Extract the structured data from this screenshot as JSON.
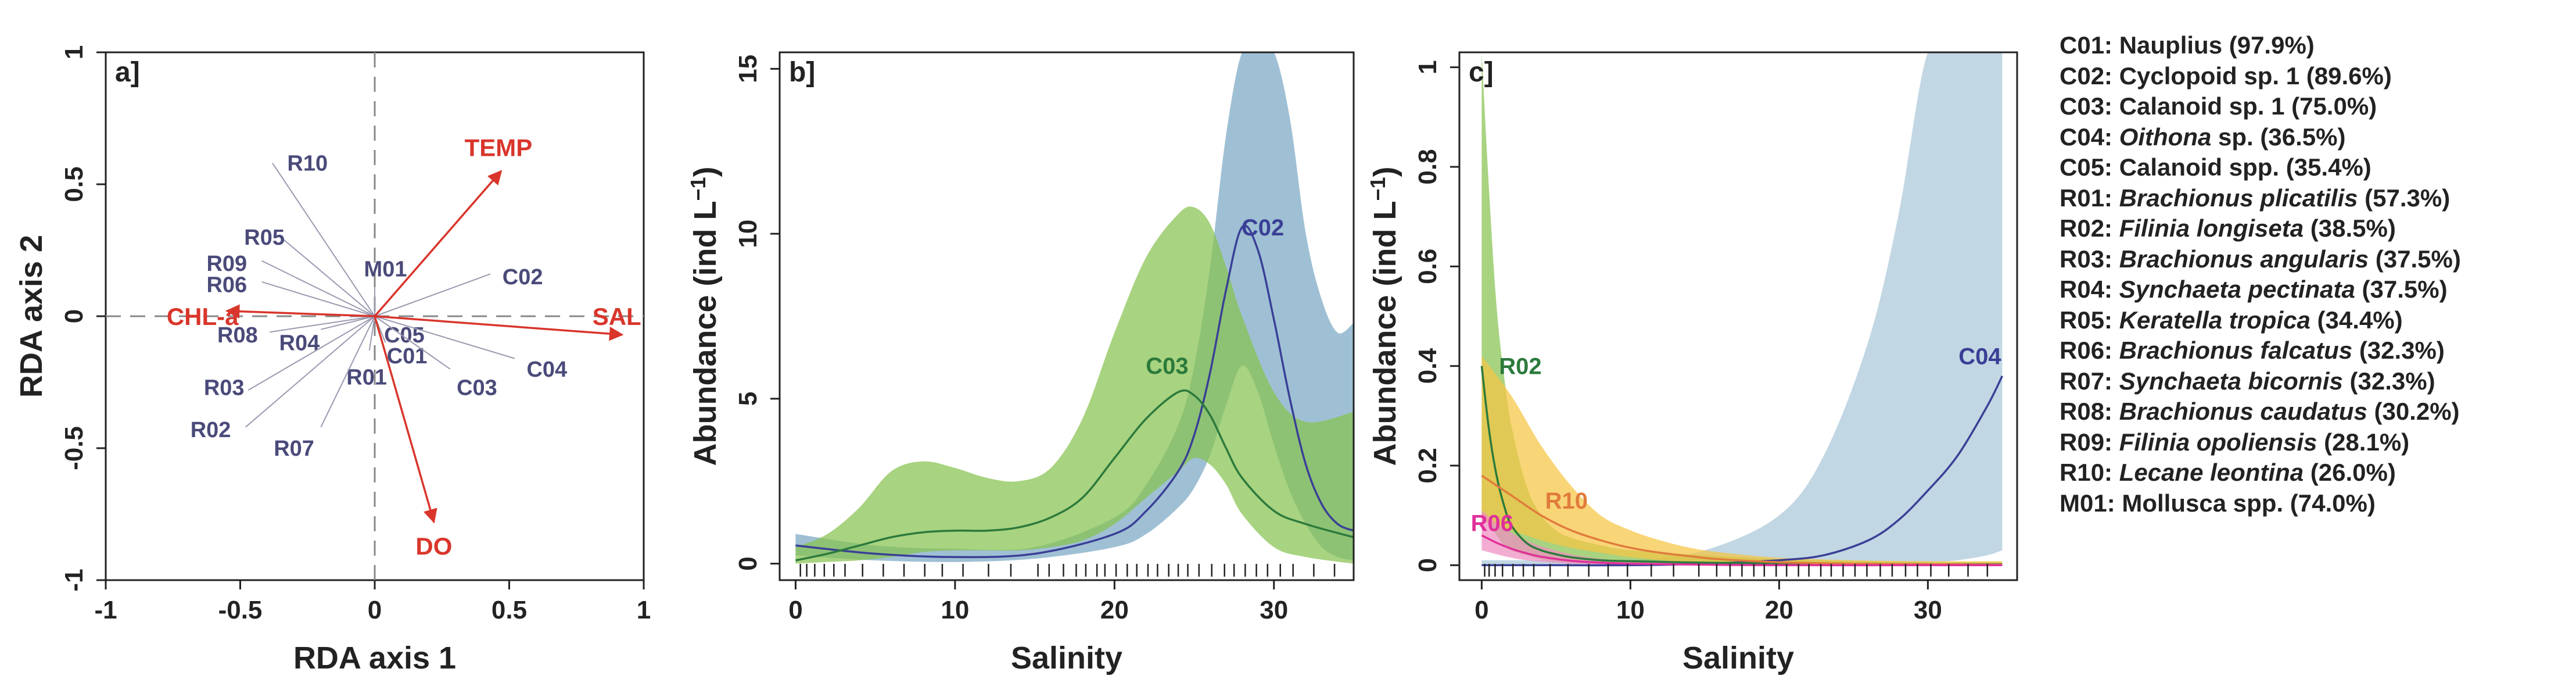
{
  "chart_data": [
    {
      "panel": "a]",
      "type": "scatter",
      "subtype": "rda-biplot",
      "xlabel": "RDA axis 1",
      "ylabel": "RDA axis 2",
      "xlim": [
        -1,
        1
      ],
      "ylim": [
        -1,
        1
      ],
      "xticks": [
        "-1",
        "-0.5",
        "0",
        "0.5",
        "1"
      ],
      "yticks": [
        "1",
        "0.5",
        "0",
        "-0.5",
        "-1"
      ],
      "env_color": "#d9352b",
      "species_color": "#4a4a7a",
      "vector_color": "#9a9ab0",
      "env_vectors": [
        {
          "name": "TEMP",
          "x": 0.47,
          "y": 0.55,
          "lx": 0.46,
          "ly": 0.64
        },
        {
          "name": "SAL",
          "x": 0.92,
          "y": -0.07,
          "lx": 0.9,
          "ly": 0.0
        },
        {
          "name": "CHL-a",
          "x": -0.55,
          "y": 0.02,
          "lx": -0.64,
          "ly": 0.0
        },
        {
          "name": "DO",
          "x": 0.22,
          "y": -0.78,
          "lx": 0.22,
          "ly": -0.87
        }
      ],
      "species": [
        {
          "name": "R10",
          "x": -0.38,
          "y": 0.58,
          "lx": -0.25,
          "ly": 0.58
        },
        {
          "name": "R05",
          "x": -0.35,
          "y": 0.3,
          "lx": -0.41,
          "ly": 0.3
        },
        {
          "name": "R09",
          "x": -0.42,
          "y": 0.21,
          "lx": -0.55,
          "ly": 0.2
        },
        {
          "name": "R06",
          "x": -0.42,
          "y": 0.13,
          "lx": -0.55,
          "ly": 0.12
        },
        {
          "name": "M01",
          "x": 0.0,
          "y": 0.11,
          "lx": 0.04,
          "ly": 0.18
        },
        {
          "name": "C02",
          "x": 0.43,
          "y": 0.16,
          "lx": 0.55,
          "ly": 0.15
        },
        {
          "name": "R08",
          "x": -0.39,
          "y": -0.06,
          "lx": -0.51,
          "ly": -0.07
        },
        {
          "name": "R04",
          "x": -0.2,
          "y": -0.05,
          "lx": -0.28,
          "ly": -0.1
        },
        {
          "name": "C05",
          "x": 0.01,
          "y": -0.04,
          "lx": 0.11,
          "ly": -0.07
        },
        {
          "name": "C01",
          "x": 0.04,
          "y": -0.1,
          "lx": 0.12,
          "ly": -0.15
        },
        {
          "name": "C03",
          "x": 0.28,
          "y": -0.2,
          "lx": 0.38,
          "ly": -0.27
        },
        {
          "name": "C04",
          "x": 0.52,
          "y": -0.16,
          "lx": 0.64,
          "ly": -0.2
        },
        {
          "name": "R01",
          "x": -0.02,
          "y": -0.13,
          "lx": -0.03,
          "ly": -0.23
        },
        {
          "name": "R03",
          "x": -0.47,
          "y": -0.28,
          "lx": -0.56,
          "ly": -0.27
        },
        {
          "name": "R02",
          "x": -0.48,
          "y": -0.42,
          "lx": -0.61,
          "ly": -0.43
        },
        {
          "name": "R07",
          "x": -0.2,
          "y": -0.42,
          "lx": -0.3,
          "ly": -0.5
        }
      ]
    },
    {
      "panel": "b]",
      "type": "line",
      "subtype": "gam-with-confidence-band",
      "xlabel": "Salinity",
      "ylabel": "Abundance (ind L",
      "ylabel_superscript": "−1",
      "ylabel_suffix": ")",
      "xlim": [
        -1,
        35
      ],
      "ylim": [
        -0.5,
        15.5
      ],
      "xticks": [
        "0",
        "10",
        "20",
        "30"
      ],
      "yticks": [
        "0",
        "5",
        "10",
        "15"
      ],
      "series": [
        {
          "name": "C02",
          "color": "#3a3f96",
          "band_color": "#7aa8c4",
          "x": [
            0,
            5,
            10,
            15,
            20,
            22,
            24,
            25,
            26,
            27,
            28,
            29,
            30,
            31,
            32,
            33,
            34,
            35
          ],
          "values": [
            0.55,
            0.3,
            0.2,
            0.3,
            0.9,
            1.6,
            2.8,
            3.9,
            5.8,
            8.3,
            10.2,
            9.5,
            7.4,
            5.0,
            3.0,
            1.8,
            1.2,
            1.0
          ],
          "lower": [
            0.25,
            0.1,
            0.05,
            0.15,
            0.5,
            0.9,
            1.7,
            2.3,
            3.3,
            4.8,
            6.0,
            5.2,
            3.6,
            2.2,
            1.2,
            0.5,
            0.2,
            0.1
          ],
          "upper": [
            0.9,
            0.55,
            0.45,
            0.5,
            1.4,
            2.4,
            4.2,
            6.0,
            9.0,
            13.0,
            15.5,
            15.5,
            15.5,
            13.5,
            10.0,
            8.0,
            7.0,
            7.3
          ],
          "label_x": 29.3,
          "label_y": 10.2
        },
        {
          "name": "C03",
          "color": "#2c7a3c",
          "band_color": "#86c24f",
          "x": [
            0,
            2,
            4,
            6,
            8,
            10,
            12,
            14,
            16,
            18,
            20,
            22,
            24,
            25,
            26,
            27,
            28,
            30,
            32,
            35
          ],
          "values": [
            0.1,
            0.3,
            0.55,
            0.8,
            0.95,
            1.0,
            1.0,
            1.1,
            1.4,
            2.0,
            3.2,
            4.4,
            5.2,
            5.1,
            4.5,
            3.5,
            2.6,
            1.6,
            1.2,
            0.8
          ],
          "lower": [
            0.0,
            0.05,
            0.1,
            0.2,
            0.35,
            0.4,
            0.4,
            0.4,
            0.5,
            0.7,
            1.2,
            2.0,
            2.8,
            3.2,
            3.0,
            2.4,
            1.5,
            0.5,
            0.2,
            0.0
          ],
          "upper": [
            0.5,
            0.9,
            1.7,
            2.8,
            3.1,
            2.9,
            2.6,
            2.5,
            2.9,
            4.4,
            7.0,
            9.3,
            10.6,
            10.8,
            10.3,
            9.0,
            7.5,
            5.2,
            4.3,
            4.6
          ],
          "label_x": 23.3,
          "label_y": 6.0
        }
      ],
      "rug": [
        0.3,
        0.7,
        1.2,
        1.8,
        2.4,
        3.1,
        4.2,
        5.5,
        6.8,
        8.1,
        9.2,
        10.5,
        12.1,
        13.5,
        15.2,
        15.9,
        16.8,
        17.6,
        18.2,
        18.9,
        19.4,
        20.1,
        20.8,
        21.4,
        22.1,
        22.7,
        23.4,
        24.0,
        24.6,
        25.3,
        26.1,
        26.9,
        27.5,
        28.2,
        28.9,
        29.6,
        30.4,
        31.2,
        32.5,
        33.8
      ]
    },
    {
      "panel": "c]",
      "type": "line",
      "subtype": "gam-with-confidence-band",
      "xlabel": "Salinity",
      "ylabel": "Abundance (ind L",
      "ylabel_superscript": "−1",
      "ylabel_suffix": ")",
      "xlim": [
        -1.5,
        36
      ],
      "ylim": [
        -0.03,
        1.03
      ],
      "xticks": [
        "0",
        "10",
        "20",
        "30"
      ],
      "yticks": [
        "0",
        "0.2",
        "0.4",
        "0.6",
        "0.8",
        "1"
      ],
      "series": [
        {
          "name": "C04",
          "color": "#3a3f96",
          "band_color": "#a9c8d8",
          "x": [
            0,
            5,
            10,
            15,
            20,
            23,
            26,
            28,
            30,
            32,
            34,
            35
          ],
          "values": [
            0.0,
            0.0,
            0.0,
            0.003,
            0.01,
            0.02,
            0.05,
            0.09,
            0.15,
            0.22,
            0.32,
            0.38
          ],
          "lower": [
            0.0,
            0.0,
            0.0,
            0.0,
            0.0,
            0.0,
            0.0,
            0.0,
            0.005,
            0.01,
            0.02,
            0.03
          ],
          "upper": [
            0.01,
            0.01,
            0.01,
            0.03,
            0.1,
            0.22,
            0.45,
            0.7,
            1.03,
            1.03,
            1.03,
            1.03
          ],
          "label_x": 33.5,
          "label_y": 0.42
        },
        {
          "name": "R02",
          "color": "#2c7a3c",
          "band_color": "#86c24f",
          "x": [
            0,
            0.5,
            1,
            1.5,
            2,
            3,
            4,
            5,
            6,
            8,
            10,
            15,
            20,
            25,
            30,
            35
          ],
          "values": [
            0.4,
            0.27,
            0.18,
            0.12,
            0.08,
            0.045,
            0.03,
            0.022,
            0.016,
            0.01,
            0.008,
            0.005,
            0.004,
            0.003,
            0.002,
            0.002
          ],
          "lower": [
            0.1,
            0.08,
            0.06,
            0.04,
            0.03,
            0.02,
            0.012,
            0.008,
            0.006,
            0.004,
            0.003,
            0.002,
            0.001,
            0.0,
            0.0,
            0.0
          ],
          "upper": [
            1.03,
            0.75,
            0.52,
            0.38,
            0.28,
            0.16,
            0.1,
            0.07,
            0.055,
            0.04,
            0.03,
            0.02,
            0.012,
            0.008,
            0.006,
            0.006
          ],
          "label_x": 2.6,
          "label_y": 0.4
        },
        {
          "name": "R10",
          "color": "#e07b3c",
          "band_color": "#f5c542",
          "x": [
            0,
            2,
            4,
            6,
            8,
            10,
            12,
            14,
            16,
            20,
            25,
            30,
            35
          ],
          "values": [
            0.18,
            0.14,
            0.1,
            0.07,
            0.05,
            0.035,
            0.025,
            0.018,
            0.012,
            0.006,
            0.003,
            0.002,
            0.001
          ],
          "lower": [
            0.09,
            0.07,
            0.05,
            0.035,
            0.025,
            0.016,
            0.01,
            0.006,
            0.004,
            0.002,
            0.001,
            0.0,
            0.0
          ],
          "upper": [
            0.42,
            0.34,
            0.24,
            0.16,
            0.1,
            0.07,
            0.05,
            0.035,
            0.026,
            0.015,
            0.01,
            0.008,
            0.008
          ],
          "label_x": 5.7,
          "label_y": 0.13
        },
        {
          "name": "R06",
          "color": "#e0309a",
          "band_color": "#f08dc0",
          "x": [
            0,
            1,
            2,
            3,
            4,
            6,
            8,
            10,
            15,
            20,
            30,
            35
          ],
          "values": [
            0.06,
            0.045,
            0.033,
            0.024,
            0.017,
            0.009,
            0.005,
            0.003,
            0.001,
            0.0,
            0.0,
            0.0
          ],
          "lower": [
            0.03,
            0.022,
            0.015,
            0.01,
            0.007,
            0.003,
            0.001,
            0.0,
            0.0,
            0.0,
            0.0,
            0.0
          ],
          "upper": [
            0.11,
            0.085,
            0.065,
            0.05,
            0.038,
            0.022,
            0.013,
            0.008,
            0.004,
            0.002,
            0.001,
            0.001
          ],
          "label_x": 0.7,
          "label_y": 0.085
        }
      ],
      "rug": [
        0.2,
        0.5,
        0.9,
        1.4,
        2.1,
        2.8,
        3.5,
        4.6,
        5.8,
        7.2,
        8.5,
        9.8,
        11.4,
        12.9,
        14.6,
        15.8,
        16.7,
        17.5,
        18.3,
        19.0,
        19.8,
        20.5,
        21.3,
        22.0,
        22.8,
        23.5,
        24.3,
        25.1,
        25.9,
        26.8,
        27.6,
        28.5,
        29.3,
        30.2,
        31.4,
        32.7,
        34.0
      ]
    }
  ],
  "legend": [
    {
      "code": "C01:",
      "name": "Nauplius",
      "italic": false,
      "pct": "(97.9%)"
    },
    {
      "code": "C02:",
      "name": "Cyclopoid sp. 1",
      "italic": false,
      "pct": "(89.6%)"
    },
    {
      "code": "C03:",
      "name": "Calanoid sp. 1",
      "italic": false,
      "pct": "(75.0%)"
    },
    {
      "code": "C04:",
      "name": "Oithona",
      "suffix": " sp.",
      "italic": true,
      "pct": "(36.5%)"
    },
    {
      "code": "C05:",
      "name": "Calanoid spp.",
      "italic": false,
      "pct": "(35.4%)"
    },
    {
      "code": "R01:",
      "name": "Brachionus plicatilis",
      "italic": true,
      "pct": "(57.3%)"
    },
    {
      "code": "R02:",
      "name": "Filinia longiseta",
      "italic": true,
      "pct": "(38.5%)"
    },
    {
      "code": "R03:",
      "name": "Brachionus angularis",
      "italic": true,
      "pct": "(37.5%)"
    },
    {
      "code": "R04:",
      "name": "Synchaeta pectinata",
      "italic": true,
      "pct": "(37.5%)"
    },
    {
      "code": "R05:",
      "name": "Keratella tropica",
      "italic": true,
      "pct": "(34.4%)"
    },
    {
      "code": "R06:",
      "name": "Brachionus falcatus",
      "italic": true,
      "pct": "(32.3%)"
    },
    {
      "code": "R07:",
      "name": "Synchaeta bicornis",
      "italic": true,
      "pct": "(32.3%)"
    },
    {
      "code": "R08:",
      "name": "Brachionus caudatus",
      "italic": true,
      "pct": "(30.2%)"
    },
    {
      "code": "R09:",
      "name": "Filinia opoliensis",
      "italic": true,
      "pct": "(28.1%)"
    },
    {
      "code": "R10:",
      "name": "Lecane leontina",
      "italic": true,
      "pct": "(26.0%)"
    },
    {
      "code": "M01:",
      "name": "Mollusca spp.",
      "italic": false,
      "pct": "(74.0%)"
    }
  ]
}
